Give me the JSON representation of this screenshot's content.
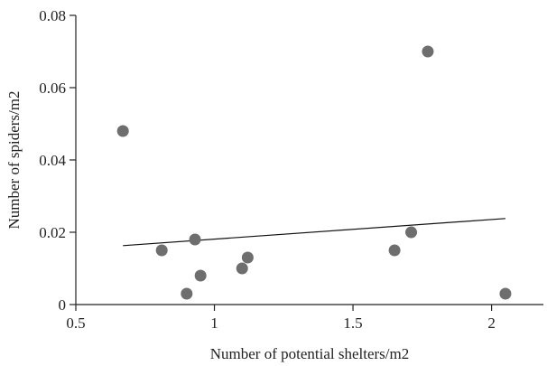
{
  "chart_data": {
    "type": "scatter",
    "title": "",
    "xlabel": "Number of potential shelters/m2",
    "ylabel": "Number of spiders/m2",
    "xlim": [
      0.5,
      2.2
    ],
    "ylim": [
      0,
      0.08
    ],
    "x_ticks": [
      0.5,
      1,
      1.5,
      2
    ],
    "x_tick_labels": [
      "0.5",
      "1",
      "1.5",
      "2"
    ],
    "y_ticks": [
      0,
      0.02,
      0.04,
      0.06,
      0.08
    ],
    "y_tick_labels": [
      "0",
      "0.02",
      "0.04",
      "0.06",
      "0.08"
    ],
    "grid": false,
    "marker_color": "#6e6e6e",
    "line_color": "#111111",
    "points": [
      {
        "x": 0.67,
        "y": 0.048
      },
      {
        "x": 0.81,
        "y": 0.015
      },
      {
        "x": 0.9,
        "y": 0.003
      },
      {
        "x": 0.93,
        "y": 0.018
      },
      {
        "x": 0.95,
        "y": 0.008
      },
      {
        "x": 1.1,
        "y": 0.01
      },
      {
        "x": 1.12,
        "y": 0.013
      },
      {
        "x": 1.65,
        "y": 0.015
      },
      {
        "x": 1.71,
        "y": 0.02
      },
      {
        "x": 1.77,
        "y": 0.07
      },
      {
        "x": 2.05,
        "y": 0.003
      }
    ],
    "trendline": {
      "x": [
        0.67,
        2.05
      ],
      "y": [
        0.0163,
        0.0238
      ]
    }
  }
}
